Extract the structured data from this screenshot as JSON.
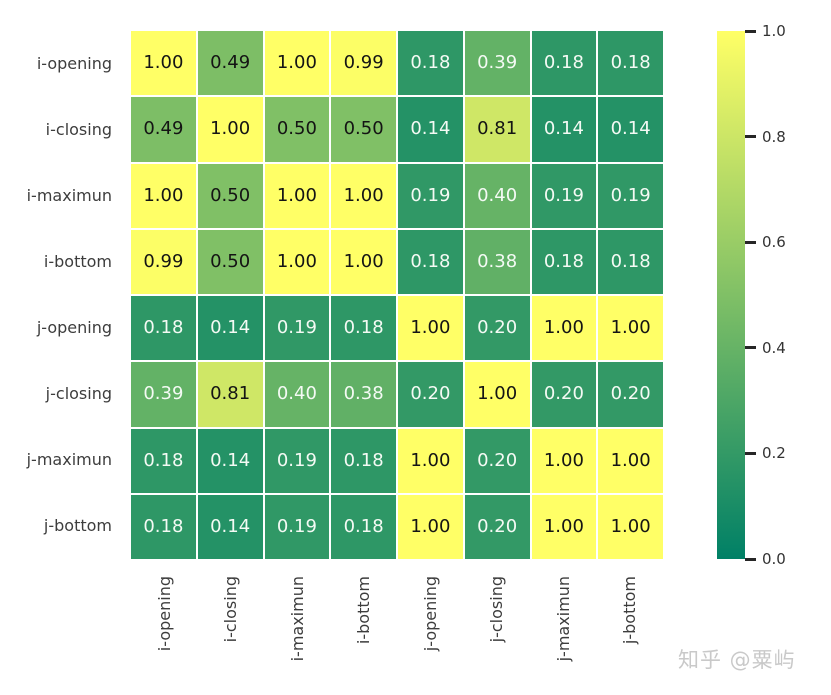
{
  "watermark": {
    "text": "知乎 @粟屿"
  },
  "chart_data": {
    "type": "heatmap",
    "title": "",
    "xlabel": "",
    "ylabel": "",
    "x_categories": [
      "i-opening",
      "i-closing",
      "i-maximun",
      "i-bottom",
      "j-opening",
      "j-closing",
      "j-maximun",
      "j-bottom"
    ],
    "y_categories": [
      "i-opening",
      "i-closing",
      "i-maximun",
      "i-bottom",
      "j-opening",
      "j-closing",
      "j-maximun",
      "j-bottom"
    ],
    "matrix": [
      [
        1.0,
        0.49,
        1.0,
        0.99,
        0.18,
        0.39,
        0.18,
        0.18
      ],
      [
        0.49,
        1.0,
        0.5,
        0.5,
        0.14,
        0.81,
        0.14,
        0.14
      ],
      [
        1.0,
        0.5,
        1.0,
        1.0,
        0.19,
        0.4,
        0.19,
        0.19
      ],
      [
        0.99,
        0.5,
        1.0,
        1.0,
        0.18,
        0.38,
        0.18,
        0.18
      ],
      [
        0.18,
        0.14,
        0.19,
        0.18,
        1.0,
        0.2,
        1.0,
        1.0
      ],
      [
        0.39,
        0.81,
        0.4,
        0.38,
        0.2,
        1.0,
        0.2,
        0.2
      ],
      [
        0.18,
        0.14,
        0.19,
        0.18,
        1.0,
        0.2,
        1.0,
        1.0
      ],
      [
        0.18,
        0.14,
        0.19,
        0.18,
        1.0,
        0.2,
        1.0,
        1.0
      ]
    ],
    "value_decimals": 2,
    "annotations_on": true,
    "grid_on": true,
    "grid_line_color": "#ffffff",
    "colormap": {
      "name": "summer",
      "low_color": "#008066",
      "high_color": "#FFFF66",
      "domain": [
        0.0,
        1.0
      ]
    },
    "annot_color_dark": "#141414",
    "annot_color_light": "#f4faf4",
    "axis_label_color": "#3d3d3d",
    "colorbar": {
      "position": "right",
      "min": 0.0,
      "max": 1.0,
      "tick_values": [
        1.0,
        0.8,
        0.6,
        0.4,
        0.2,
        0.0
      ],
      "tick_labels": [
        "1.0",
        "0.8",
        "0.6",
        "0.4",
        "0.2",
        "0.0"
      ]
    }
  }
}
